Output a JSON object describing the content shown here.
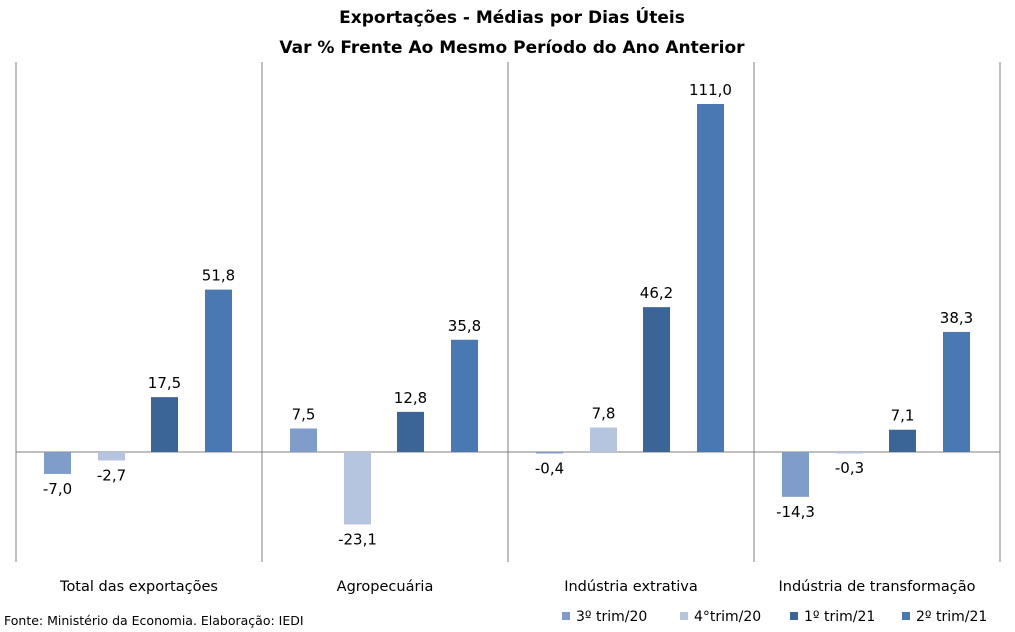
{
  "chart_data": {
    "type": "bar",
    "title": "Exportações - Médias por Dias Úteis",
    "subtitle": "Var % Frente Ao Mesmo Período do Ano Anterior",
    "categories": [
      "Total das exportações",
      "Agropecuária",
      "Indústria extrativa",
      "Indústria de transformação"
    ],
    "series": [
      {
        "name": "3º trim/20",
        "color": "#7f9ccb",
        "values": [
          -7.0,
          7.5,
          -0.4,
          -14.3
        ],
        "labels": [
          "-7,0",
          "7,5",
          "-0,4",
          "-14,3"
        ]
      },
      {
        "name": "4°trim/20",
        "color": "#b5c5df",
        "values": [
          -2.7,
          -23.1,
          7.8,
          -0.3
        ],
        "labels": [
          "-2,7",
          "-23,1",
          "7,8",
          "-0,3"
        ]
      },
      {
        "name": "1º trim/21",
        "color": "#3b6497",
        "values": [
          17.5,
          12.8,
          46.2,
          7.1
        ],
        "labels": [
          "17,5",
          "12,8",
          "46,2",
          "7,1"
        ]
      },
      {
        "name": "2º trim/21",
        "color": "#4a78b3",
        "values": [
          51.8,
          35.8,
          111.0,
          38.3
        ],
        "labels": [
          "51,8",
          "35,8",
          "111,0",
          "38,3"
        ]
      }
    ],
    "ylim": [
      -30,
      120
    ],
    "grid": false,
    "legend": "bottom-right"
  },
  "footer": {
    "source": "Fonte: Ministério da Economia. Elaboração: IEDI"
  }
}
